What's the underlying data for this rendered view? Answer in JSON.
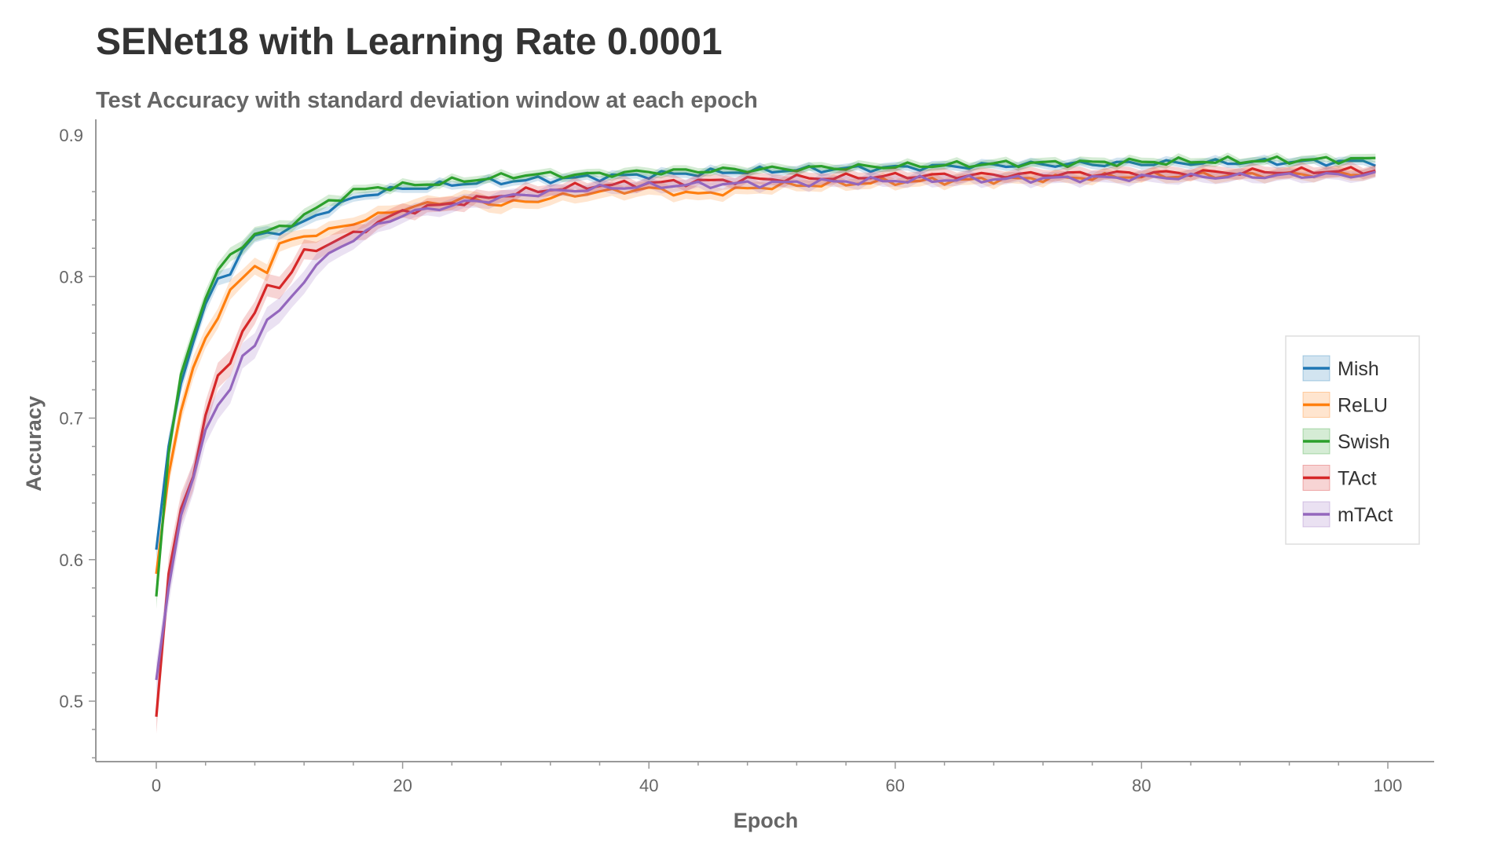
{
  "chart_data": {
    "type": "line",
    "title": "SENet18 with Learning Rate 0.0001",
    "subtitle": "Test Accuracy with standard deviation window at each epoch",
    "xlabel": "Epoch",
    "ylabel": "Accuracy",
    "xlim": [
      -5,
      104
    ],
    "ylim": [
      0.455,
      0.905
    ],
    "xticks": [
      0,
      20,
      40,
      60,
      80,
      100
    ],
    "yticks": [
      0.5,
      0.6,
      0.7,
      0.8,
      0.9
    ],
    "grid": false,
    "legend_position": "right",
    "band": "standard deviation",
    "series": [
      {
        "name": "Mish",
        "color": "#1f77b4",
        "x": [
          0,
          1,
          2,
          3,
          4,
          5,
          6,
          7,
          8,
          10,
          12,
          14,
          16,
          18,
          20,
          25,
          30,
          35,
          40,
          50,
          60,
          70,
          80,
          90,
          99
        ],
        "y": [
          0.607,
          0.68,
          0.725,
          0.755,
          0.78,
          0.797,
          0.803,
          0.82,
          0.828,
          0.832,
          0.838,
          0.848,
          0.855,
          0.86,
          0.862,
          0.866,
          0.868,
          0.87,
          0.872,
          0.875,
          0.877,
          0.879,
          0.88,
          0.881,
          0.881
        ],
        "std": [
          0.008,
          0.008,
          0.007,
          0.006,
          0.006,
          0.005,
          0.005,
          0.005,
          0.005,
          0.004,
          0.004,
          0.004,
          0.003,
          0.003,
          0.003,
          0.003,
          0.003,
          0.003,
          0.003,
          0.003,
          0.003,
          0.003,
          0.003,
          0.003,
          0.003
        ]
      },
      {
        "name": "ReLU",
        "color": "#ff7f0e",
        "x": [
          0,
          1,
          2,
          3,
          4,
          5,
          6,
          7,
          8,
          9,
          10,
          12,
          14,
          16,
          18,
          20,
          25,
          28,
          30,
          35,
          40,
          44,
          50,
          60,
          70,
          80,
          90,
          99
        ],
        "y": [
          0.59,
          0.66,
          0.705,
          0.735,
          0.755,
          0.773,
          0.79,
          0.798,
          0.807,
          0.805,
          0.822,
          0.829,
          0.832,
          0.838,
          0.843,
          0.848,
          0.855,
          0.851,
          0.853,
          0.859,
          0.862,
          0.858,
          0.864,
          0.867,
          0.869,
          0.871,
          0.872,
          0.873
        ],
        "std": [
          0.008,
          0.009,
          0.008,
          0.008,
          0.007,
          0.007,
          0.007,
          0.006,
          0.006,
          0.006,
          0.006,
          0.005,
          0.005,
          0.005,
          0.005,
          0.005,
          0.005,
          0.006,
          0.005,
          0.005,
          0.005,
          0.005,
          0.004,
          0.004,
          0.004,
          0.004,
          0.004,
          0.004
        ]
      },
      {
        "name": "Swish",
        "color": "#2ca02c",
        "x": [
          0,
          1,
          2,
          3,
          4,
          5,
          6,
          7,
          8,
          10,
          12,
          14,
          16,
          18,
          20,
          25,
          30,
          35,
          40,
          50,
          60,
          70,
          80,
          90,
          99
        ],
        "y": [
          0.574,
          0.675,
          0.728,
          0.76,
          0.785,
          0.805,
          0.813,
          0.823,
          0.83,
          0.834,
          0.843,
          0.853,
          0.86,
          0.863,
          0.864,
          0.868,
          0.872,
          0.872,
          0.874,
          0.876,
          0.878,
          0.88,
          0.881,
          0.882,
          0.883
        ],
        "std": [
          0.009,
          0.008,
          0.007,
          0.006,
          0.006,
          0.005,
          0.005,
          0.005,
          0.005,
          0.004,
          0.004,
          0.004,
          0.003,
          0.003,
          0.003,
          0.003,
          0.003,
          0.003,
          0.003,
          0.003,
          0.003,
          0.003,
          0.003,
          0.003,
          0.003
        ]
      },
      {
        "name": "TAct",
        "color": "#d62728",
        "x": [
          0,
          1,
          2,
          3,
          4,
          5,
          6,
          7,
          8,
          9,
          10,
          11,
          12,
          14,
          16,
          18,
          20,
          25,
          30,
          35,
          40,
          50,
          60,
          70,
          80,
          90,
          99
        ],
        "y": [
          0.489,
          0.59,
          0.637,
          0.66,
          0.7,
          0.73,
          0.74,
          0.762,
          0.772,
          0.795,
          0.793,
          0.803,
          0.817,
          0.823,
          0.83,
          0.838,
          0.846,
          0.853,
          0.86,
          0.864,
          0.866,
          0.869,
          0.871,
          0.872,
          0.873,
          0.874,
          0.875
        ],
        "std": [
          0.012,
          0.012,
          0.011,
          0.01,
          0.01,
          0.009,
          0.009,
          0.008,
          0.008,
          0.008,
          0.008,
          0.007,
          0.007,
          0.006,
          0.006,
          0.005,
          0.005,
          0.005,
          0.004,
          0.004,
          0.004,
          0.004,
          0.004,
          0.004,
          0.004,
          0.004,
          0.004
        ]
      },
      {
        "name": "mTAct",
        "color": "#9467bd",
        "x": [
          0,
          1,
          2,
          3,
          4,
          5,
          6,
          7,
          8,
          9,
          10,
          11,
          12,
          13,
          14,
          16,
          18,
          20,
          25,
          30,
          35,
          40,
          50,
          60,
          70,
          80,
          90,
          99
        ],
        "y": [
          0.515,
          0.58,
          0.632,
          0.655,
          0.693,
          0.71,
          0.72,
          0.742,
          0.753,
          0.77,
          0.775,
          0.785,
          0.798,
          0.808,
          0.815,
          0.827,
          0.836,
          0.844,
          0.852,
          0.858,
          0.862,
          0.864,
          0.866,
          0.868,
          0.869,
          0.87,
          0.871,
          0.872
        ],
        "std": [
          0.012,
          0.012,
          0.011,
          0.011,
          0.01,
          0.01,
          0.01,
          0.009,
          0.009,
          0.009,
          0.009,
          0.008,
          0.008,
          0.008,
          0.007,
          0.006,
          0.006,
          0.005,
          0.005,
          0.004,
          0.004,
          0.004,
          0.004,
          0.004,
          0.004,
          0.004,
          0.004,
          0.004
        ]
      }
    ]
  }
}
